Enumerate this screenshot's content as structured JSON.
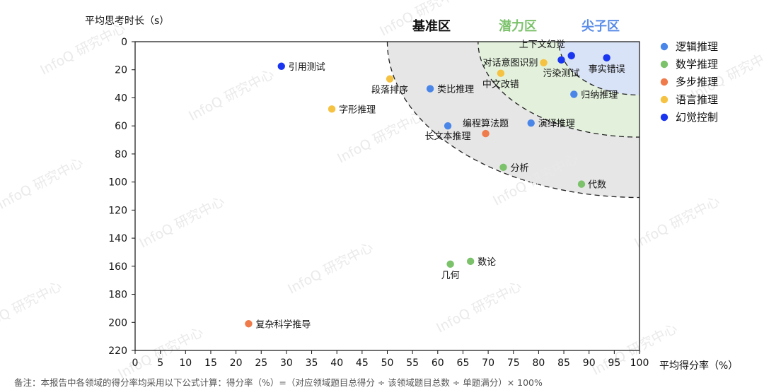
{
  "chart_data": {
    "type": "scatter",
    "xlabel": "平均得分率（%）",
    "ylabel": "平均思考时长（s）",
    "xlim": [
      0,
      100
    ],
    "ylim": [
      0,
      220
    ],
    "y_inverted": true,
    "x_ticks": [
      0,
      5,
      10,
      15,
      20,
      25,
      30,
      35,
      40,
      45,
      50,
      55,
      60,
      65,
      70,
      75,
      80,
      85,
      90,
      95,
      100
    ],
    "y_ticks": [
      0,
      20,
      40,
      60,
      80,
      100,
      120,
      140,
      160,
      180,
      200,
      220
    ],
    "grid": false,
    "legend_position": "right",
    "zones": [
      {
        "name": "基准区",
        "color": "#111111",
        "fill": "#e6e6e6",
        "radius_x": 50,
        "radius_y": 111
      },
      {
        "name": "潜力区",
        "color": "#7cc26b",
        "fill": "#e3f1dc",
        "radius_x": 32,
        "radius_y": 68
      },
      {
        "name": "尖子区",
        "color": "#5a8ce8",
        "fill": "#d9e3f7",
        "radius_x": 16,
        "radius_y": 38
      }
    ],
    "series": [
      {
        "name": "逻辑推理",
        "color": "#4a86e8",
        "points": [
          {
            "label": "类比推理",
            "x": 58.5,
            "y": 33.5
          },
          {
            "label": "长文本推理",
            "x": 62,
            "y": 60
          },
          {
            "label": "演绎推理",
            "x": 78.5,
            "y": 58
          },
          {
            "label": "归纳推理",
            "x": 87,
            "y": 37.5
          }
        ]
      },
      {
        "name": "数学推理",
        "color": "#7cc26b",
        "points": [
          {
            "label": "分析",
            "x": 73,
            "y": 89.5
          },
          {
            "label": "代数",
            "x": 88.5,
            "y": 101.5
          },
          {
            "label": "几何",
            "x": 62.5,
            "y": 158.5
          },
          {
            "label": "数论",
            "x": 66.5,
            "y": 156.5
          }
        ]
      },
      {
        "name": "多步推理",
        "color": "#ef7a4a",
        "points": [
          {
            "label": "编程算法题",
            "x": 69.5,
            "y": 65.5
          },
          {
            "label": "复杂科学推导",
            "x": 22.5,
            "y": 201
          }
        ]
      },
      {
        "name": "语言推理",
        "color": "#f5c242",
        "points": [
          {
            "label": "段落排序",
            "x": 50.5,
            "y": 26.5
          },
          {
            "label": "字形推理",
            "x": 39,
            "y": 48
          },
          {
            "label": "中文改错",
            "x": 72.5,
            "y": 22.5
          },
          {
            "label": "对话意图识别",
            "x": 81,
            "y": 15
          }
        ]
      },
      {
        "name": "幻觉控制",
        "color": "#1a35f0",
        "points": [
          {
            "label": "引用测试",
            "x": 29,
            "y": 17.5
          },
          {
            "label": "上下文幻觉",
            "x": 86.5,
            "y": 10
          },
          {
            "label": "污染测试",
            "x": 84.5,
            "y": 13
          },
          {
            "label": "事实错误",
            "x": 93.5,
            "y": 11.5
          }
        ]
      }
    ]
  },
  "watermark": "InfoQ 研究中心",
  "footnote": "备注：本报告中各领域的得分率均采用以下公式计算：得分率（%）=（对应领域题目总得分 ÷ 该领域题目总数 ÷ 单题满分）× 100%"
}
